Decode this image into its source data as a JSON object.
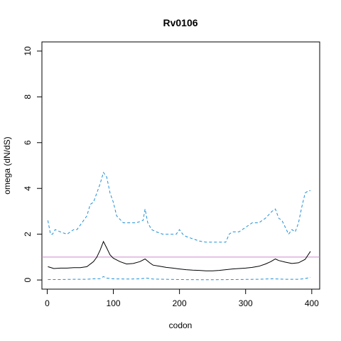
{
  "chart_data": {
    "type": "line",
    "title": "Rv0106",
    "xlabel": "codon",
    "ylabel": "omega (dN/dS)",
    "xlim": [
      -8,
      412
    ],
    "ylim": [
      -0.4,
      10.4
    ],
    "x_ticks": [
      0,
      100,
      200,
      300,
      400
    ],
    "y_ticks": [
      0,
      2,
      4,
      6,
      8,
      10
    ],
    "x_tick_labels": [
      "0",
      "100",
      "200",
      "300",
      "400"
    ],
    "y_tick_labels": [
      "0",
      "2",
      "4",
      "6",
      "8",
      "10"
    ],
    "grid": false,
    "reference_line": {
      "y": 1,
      "color": "#cc88cc"
    },
    "series": [
      {
        "style": "solid",
        "color": "#000000",
        "x": [
          1,
          10,
          20,
          30,
          40,
          50,
          60,
          70,
          75,
          80,
          85,
          90,
          95,
          100,
          110,
          120,
          130,
          140,
          148,
          155,
          160,
          170,
          180,
          190,
          200,
          210,
          220,
          230,
          240,
          250,
          260,
          270,
          280,
          290,
          300,
          310,
          320,
          330,
          338,
          345,
          350,
          360,
          370,
          380,
          390,
          398
        ],
        "y": [
          0.58,
          0.5,
          0.52,
          0.52,
          0.54,
          0.54,
          0.58,
          0.8,
          1.0,
          1.3,
          1.68,
          1.4,
          1.1,
          0.95,
          0.8,
          0.7,
          0.72,
          0.8,
          0.92,
          0.75,
          0.65,
          0.6,
          0.55,
          0.52,
          0.48,
          0.45,
          0.43,
          0.42,
          0.4,
          0.4,
          0.42,
          0.45,
          0.48,
          0.5,
          0.52,
          0.55,
          0.6,
          0.7,
          0.8,
          0.92,
          0.85,
          0.78,
          0.72,
          0.75,
          0.9,
          1.25
        ]
      },
      {
        "style": "dashed",
        "color": "#1e90d8",
        "x": [
          1,
          5,
          8,
          12,
          20,
          30,
          35,
          40,
          45,
          50,
          55,
          60,
          65,
          70,
          75,
          80,
          85,
          90,
          95,
          100,
          105,
          115,
          125,
          135,
          145,
          148,
          152,
          158,
          165,
          175,
          185,
          195,
          200,
          205,
          210,
          220,
          230,
          240,
          250,
          260,
          270,
          275,
          280,
          290,
          300,
          310,
          320,
          330,
          340,
          345,
          350,
          355,
          360,
          365,
          370,
          375,
          380,
          385,
          390,
          395,
          398
        ],
        "y": [
          2.6,
          2.0,
          2.0,
          2.2,
          2.1,
          2.0,
          2.1,
          2.2,
          2.2,
          2.4,
          2.6,
          2.8,
          3.3,
          3.4,
          3.8,
          4.2,
          4.7,
          4.5,
          3.8,
          3.4,
          2.8,
          2.5,
          2.5,
          2.5,
          2.6,
          3.1,
          2.5,
          2.2,
          2.1,
          2.0,
          2.0,
          2.0,
          2.2,
          2.0,
          1.9,
          1.8,
          1.7,
          1.65,
          1.65,
          1.65,
          1.65,
          2.0,
          2.1,
          2.1,
          2.3,
          2.5,
          2.5,
          2.7,
          3.0,
          3.1,
          2.7,
          2.6,
          2.3,
          2.0,
          2.2,
          2.1,
          2.5,
          3.2,
          3.8,
          3.9,
          3.9
        ]
      },
      {
        "style": "dashed",
        "color": "#1e90d8",
        "x": [
          1,
          20,
          40,
          60,
          70,
          80,
          85,
          90,
          100,
          120,
          140,
          150,
          160,
          200,
          240,
          280,
          320,
          340,
          360,
          380,
          390,
          398
        ],
        "y": [
          0.02,
          0.02,
          0.03,
          0.03,
          0.05,
          0.06,
          0.15,
          0.08,
          0.05,
          0.04,
          0.05,
          0.08,
          0.04,
          0.02,
          0.01,
          0.02,
          0.03,
          0.05,
          0.03,
          0.03,
          0.06,
          0.12
        ]
      }
    ]
  }
}
